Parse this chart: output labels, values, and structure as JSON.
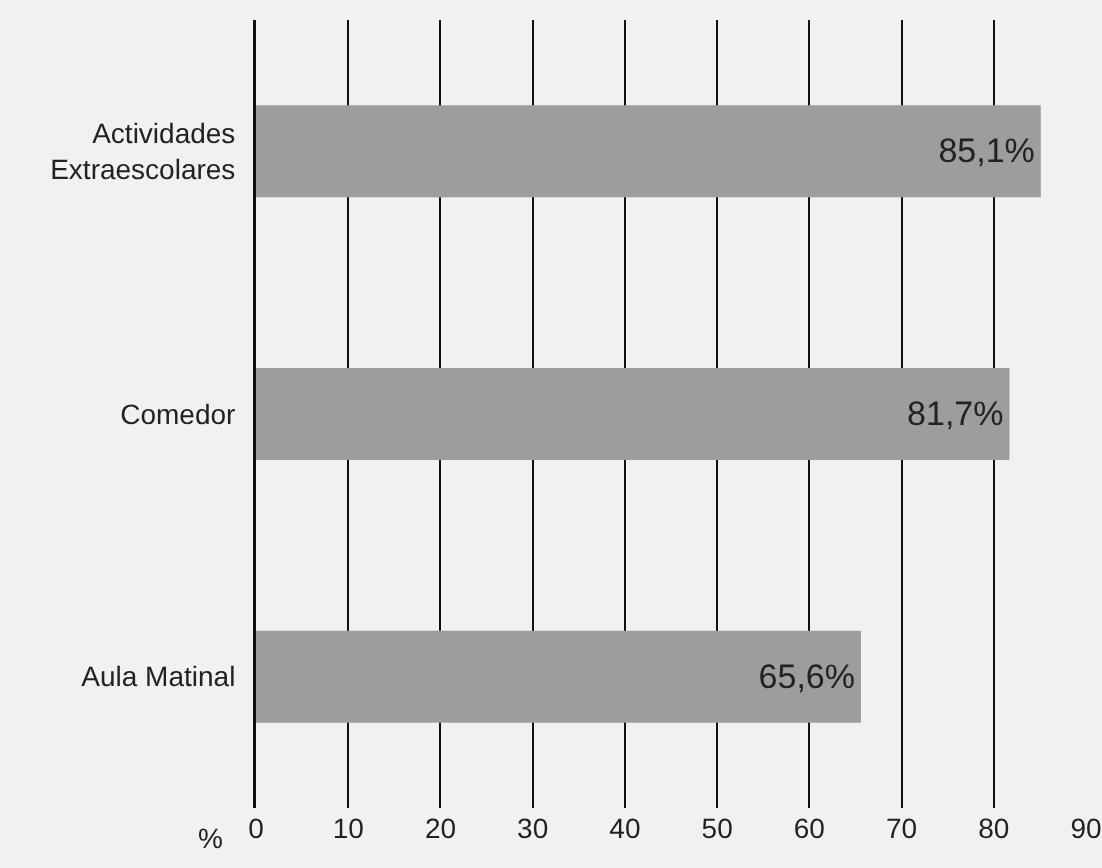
{
  "chart_data": {
    "type": "bar",
    "orientation": "horizontal",
    "categories": [
      "Actividades Extraescolares",
      "Comedor",
      "Aula Matinal"
    ],
    "values": [
      85.1,
      81.7,
      65.6
    ],
    "value_labels": [
      "85,1%",
      "81,7%",
      "65,6%"
    ],
    "color": "#9d9d9d",
    "xlabel": "%",
    "xlim": [
      0,
      90
    ],
    "xticks": [
      0,
      10,
      20,
      30,
      40,
      50,
      60,
      70,
      80,
      90
    ],
    "grid": "x",
    "legend": false
  }
}
